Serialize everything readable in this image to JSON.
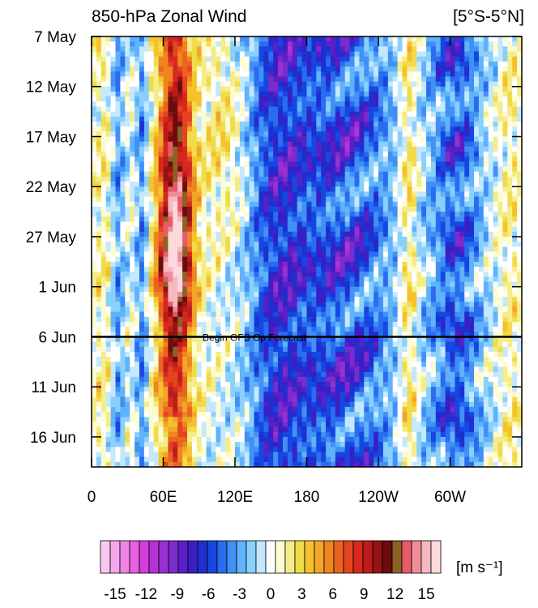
{
  "chart_data": {
    "type": "heatmap",
    "title": "850-hPa Zonal Wind",
    "region_label": "[5°S-5°N]",
    "x_ticks": [
      "0",
      "60E",
      "120E",
      "180",
      "120W",
      "60W"
    ],
    "x_tick_lon": [
      0,
      60,
      120,
      180,
      240,
      300
    ],
    "xlim": [
      0,
      360
    ],
    "y_ticks": [
      "7 May",
      "12 May",
      "17 May",
      "22 May",
      "27 May",
      "1 Jun",
      "6 Jun",
      "11 Jun",
      "16 Jun"
    ],
    "y_tick_day": [
      0,
      5,
      10,
      15,
      20,
      25,
      30,
      35,
      40
    ],
    "ylim_days": [
      0,
      43
    ],
    "forecast_start_day": 30,
    "annotation": "Begin GFS Op Forecast",
    "colorbar": {
      "unit_label": "[m s⁻¹]",
      "tick_labels": [
        "-15",
        "-12",
        "-9",
        "-6",
        "-3",
        "0",
        "3",
        "6",
        "9",
        "12",
        "15"
      ],
      "colors": [
        "#f7c9f0",
        "#f3a8ec",
        "#ee85e6",
        "#e85fe0",
        "#d43ddb",
        "#b532d6",
        "#9a2fd2",
        "#7c2bcc",
        "#5a20c8",
        "#3a20c4",
        "#1f2fd0",
        "#1448e0",
        "#2a6cf0",
        "#4290f5",
        "#60b2fb",
        "#8ad0fc",
        "#c4e8fd",
        "#ffffff",
        "#fdfbd0",
        "#f5ec8a",
        "#f0dc4a",
        "#f5c22c",
        "#f3a52a",
        "#ee8522",
        "#ea6420",
        "#e44420",
        "#d8281e",
        "#bc1c1c",
        "#941414",
        "#6c0c0c",
        "#8a6224",
        "#e65a6a",
        "#f08c98",
        "#f7b9c0",
        "#fbd9dc"
      ]
    },
    "grid": false
  }
}
